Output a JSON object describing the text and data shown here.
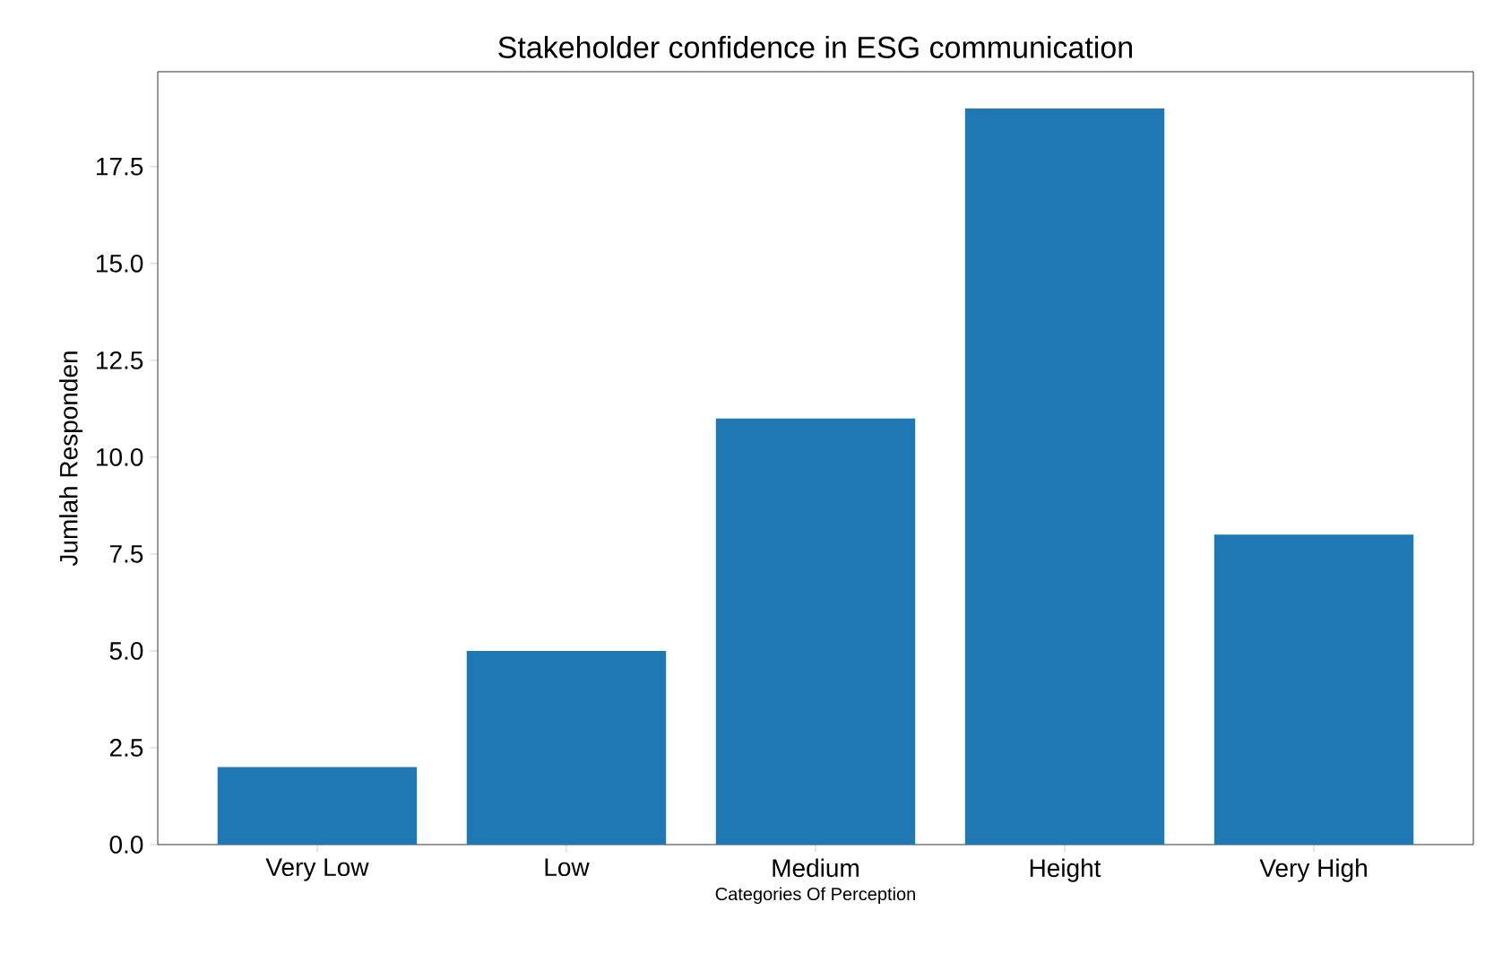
{
  "chart_data": {
    "type": "bar",
    "title": "Stakeholder confidence in ESG communication",
    "xlabel": "Categories Of Perception",
    "ylabel": "Jumlah Responden",
    "categories": [
      "Very Low",
      "Low",
      "Medium",
      "Height",
      "Very High"
    ],
    "values": [
      2,
      5,
      11,
      19,
      8
    ],
    "color": "#1f77b4",
    "ylim": [
      0,
      19.95
    ],
    "yticks": [
      {
        "value": 0,
        "label": "0.0"
      },
      {
        "value": 2.5,
        "label": "2.5"
      },
      {
        "value": 5,
        "label": "5.0"
      },
      {
        "value": 7.5,
        "label": "7.5"
      },
      {
        "value": 10,
        "label": "10.0"
      },
      {
        "value": 12.5,
        "label": "12.5"
      },
      {
        "value": 15,
        "label": "15.0"
      },
      {
        "value": 17.5,
        "label": "17.5"
      }
    ]
  }
}
